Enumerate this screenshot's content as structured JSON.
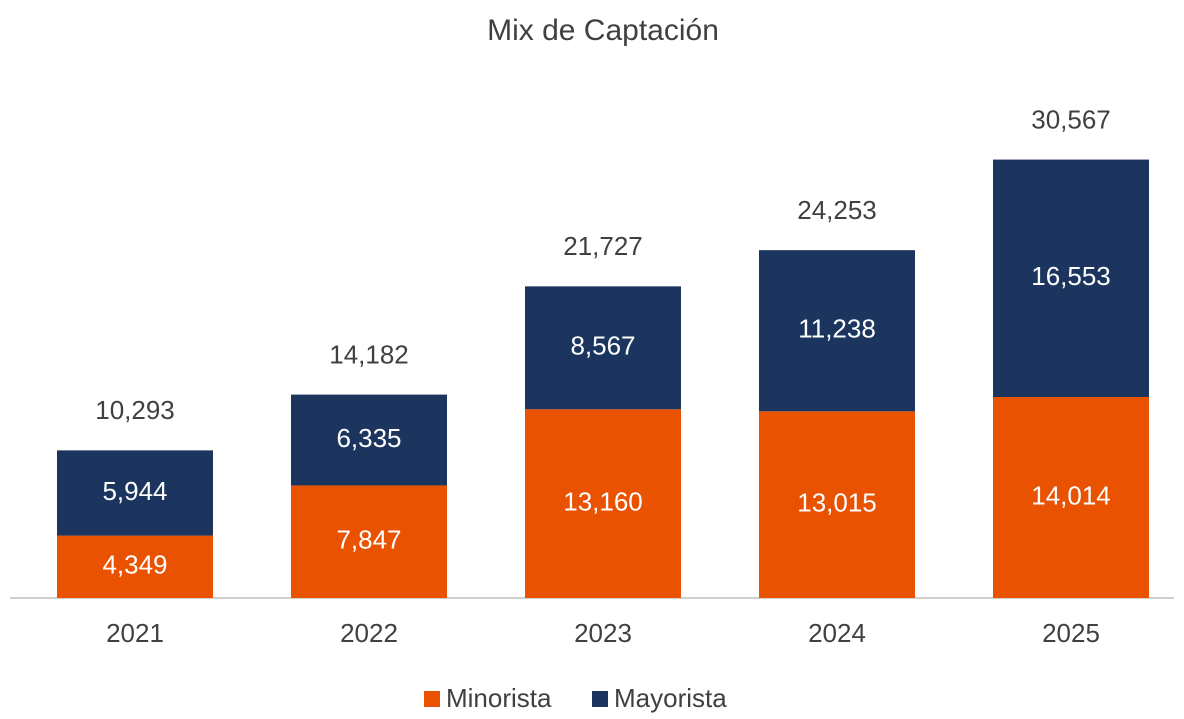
{
  "chart_data": {
    "type": "stacked_bar",
    "title": "Mix de Captación",
    "categories": [
      "2021",
      "2022",
      "2023",
      "2024",
      "2025"
    ],
    "series": [
      {
        "name": "Minorista",
        "color": "#e85200",
        "values": [
          4349,
          7847,
          13160,
          13015,
          14014
        ],
        "value_labels": [
          "4,349",
          "7,847",
          "13,160",
          "13,015",
          "14,014"
        ]
      },
      {
        "name": "Mayorista",
        "color": "#1c355e",
        "values": [
          5944,
          6335,
          8567,
          11238,
          16553
        ],
        "value_labels": [
          "5,944",
          "6,335",
          "8,567",
          "11,238",
          "16,553"
        ]
      }
    ],
    "totals": [
      10293,
      14182,
      21727,
      24253,
      30567
    ],
    "total_labels": [
      "10,293",
      "14,182",
      "21,727",
      "24,253",
      "30,567"
    ],
    "ylim": [
      0,
      35000
    ],
    "legend": "bottom"
  }
}
